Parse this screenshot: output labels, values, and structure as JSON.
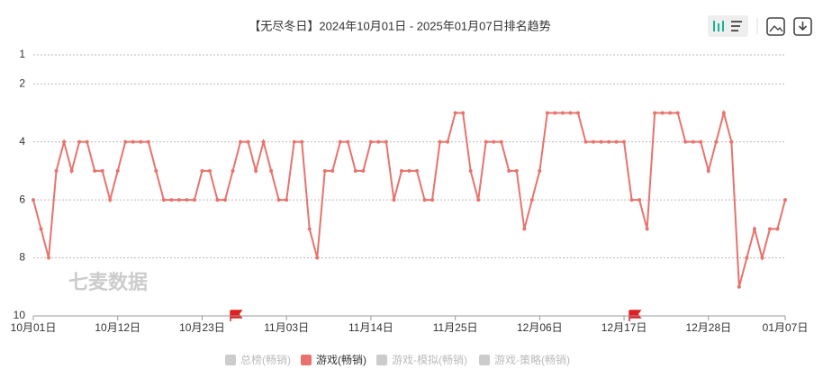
{
  "chart_data": {
    "type": "line",
    "title": "【无尽冬日】2024年10月01日 - 2025年01月07日排名趋势",
    "watermark": "七麦数据",
    "categories": [
      "10月01日",
      null,
      null,
      null,
      null,
      null,
      null,
      null,
      null,
      null,
      null,
      "10月12日",
      null,
      null,
      null,
      null,
      null,
      null,
      null,
      null,
      null,
      null,
      "10月23日",
      null,
      null,
      null,
      null,
      null,
      null,
      null,
      null,
      null,
      null,
      "11月03日",
      null,
      null,
      null,
      null,
      null,
      null,
      null,
      null,
      null,
      null,
      "11月14日",
      null,
      null,
      null,
      null,
      null,
      null,
      null,
      null,
      null,
      null,
      "11月25日",
      null,
      null,
      null,
      null,
      null,
      null,
      null,
      null,
      null,
      null,
      "12月06日",
      null,
      null,
      null,
      null,
      null,
      null,
      null,
      null,
      null,
      null,
      "12月17日",
      null,
      null,
      null,
      null,
      null,
      null,
      null,
      null,
      null,
      null,
      "12月28日",
      null,
      null,
      null,
      null,
      null,
      null,
      null,
      null,
      null,
      "01月07日"
    ],
    "series": [
      {
        "name": "游戏(畅销)",
        "color": "#e8736c",
        "values": [
          6,
          7,
          8,
          5,
          4,
          5,
          4,
          4,
          5,
          5,
          6,
          5,
          4,
          4,
          4,
          4,
          5,
          6,
          6,
          6,
          6,
          6,
          5,
          5,
          6,
          6,
          5,
          4,
          4,
          5,
          4,
          5,
          6,
          6,
          4,
          4,
          7,
          8,
          5,
          5,
          4,
          4,
          5,
          5,
          4,
          4,
          4,
          6,
          5,
          5,
          5,
          6,
          6,
          4,
          4,
          3,
          3,
          5,
          6,
          4,
          4,
          4,
          5,
          5,
          7,
          6,
          5,
          3,
          3,
          3,
          3,
          3,
          4,
          4,
          4,
          4,
          4,
          4,
          6,
          6,
          7,
          3,
          3,
          3,
          3,
          4,
          4,
          4,
          5,
          4,
          3,
          4,
          9,
          8,
          7,
          8,
          7,
          7,
          6
        ]
      }
    ],
    "inactive_legend": [
      "总榜(畅销)",
      "游戏-模拟(畅销)",
      "游戏-策略(畅销)"
    ],
    "ylim": [
      1,
      10
    ],
    "y_inverted": true,
    "yticks": [
      1,
      2,
      4,
      6,
      8,
      10
    ],
    "grid": true
  }
}
